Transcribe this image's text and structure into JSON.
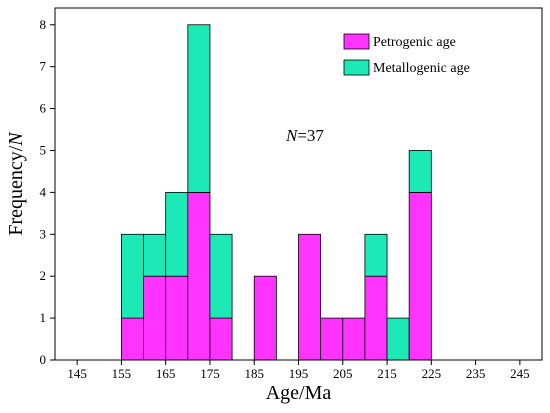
{
  "chart_data": {
    "type": "bar",
    "subtype": "stacked-histogram",
    "bin_width": 5,
    "bins": [
      {
        "start": 155,
        "end": 160,
        "petrogenic": 1,
        "metallogenic": 2
      },
      {
        "start": 160,
        "end": 165,
        "petrogenic": 2,
        "metallogenic": 1
      },
      {
        "start": 165,
        "end": 170,
        "petrogenic": 2,
        "metallogenic": 2
      },
      {
        "start": 170,
        "end": 175,
        "petrogenic": 4,
        "metallogenic": 4
      },
      {
        "start": 175,
        "end": 180,
        "petrogenic": 1,
        "metallogenic": 2
      },
      {
        "start": 185,
        "end": 190,
        "petrogenic": 2,
        "metallogenic": 0
      },
      {
        "start": 195,
        "end": 200,
        "petrogenic": 3,
        "metallogenic": 0
      },
      {
        "start": 200,
        "end": 205,
        "petrogenic": 1,
        "metallogenic": 0
      },
      {
        "start": 205,
        "end": 210,
        "petrogenic": 1,
        "metallogenic": 0
      },
      {
        "start": 210,
        "end": 215,
        "petrogenic": 2,
        "metallogenic": 1
      },
      {
        "start": 215,
        "end": 220,
        "petrogenic": 0,
        "metallogenic": 1
      },
      {
        "start": 220,
        "end": 225,
        "petrogenic": 4,
        "metallogenic": 1
      }
    ],
    "series": [
      {
        "key": "petrogenic",
        "name": "Petrogenic  age",
        "color": "#ff33ff"
      },
      {
        "key": "metallogenic",
        "name": "Metallogenic age",
        "color": "#1de9b6"
      }
    ],
    "xlabel": "Age/Ma",
    "ylabel_main": "Frequency/",
    "ylabel_italic": "N",
    "xlim": [
      140,
      250
    ],
    "ylim": [
      0,
      8.4
    ],
    "xticks": [
      145,
      155,
      165,
      175,
      185,
      195,
      205,
      215,
      225,
      235,
      245
    ],
    "yticks": [
      0,
      1,
      2,
      3,
      4,
      5,
      6,
      7,
      8
    ],
    "annotation": {
      "italic": "N",
      "text": "=37"
    },
    "legend_position": "top-right",
    "grid": false
  }
}
